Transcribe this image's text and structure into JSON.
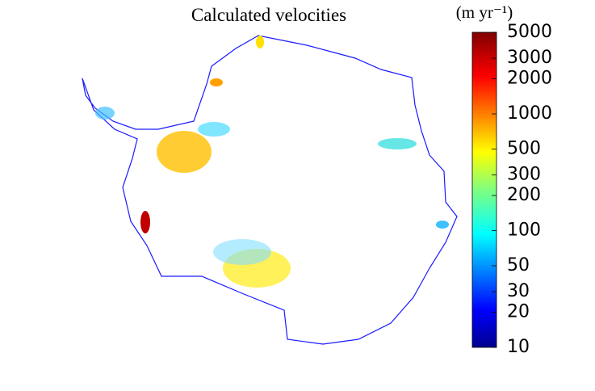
{
  "title": "Calculated velocities",
  "colorbar": {
    "label": "(m yr⁻¹)",
    "scale": "log",
    "lim": [
      10,
      5000
    ],
    "ticks": [
      10,
      20,
      30,
      50,
      100,
      200,
      300,
      500,
      1000,
      2000,
      3000,
      5000
    ]
  }
}
